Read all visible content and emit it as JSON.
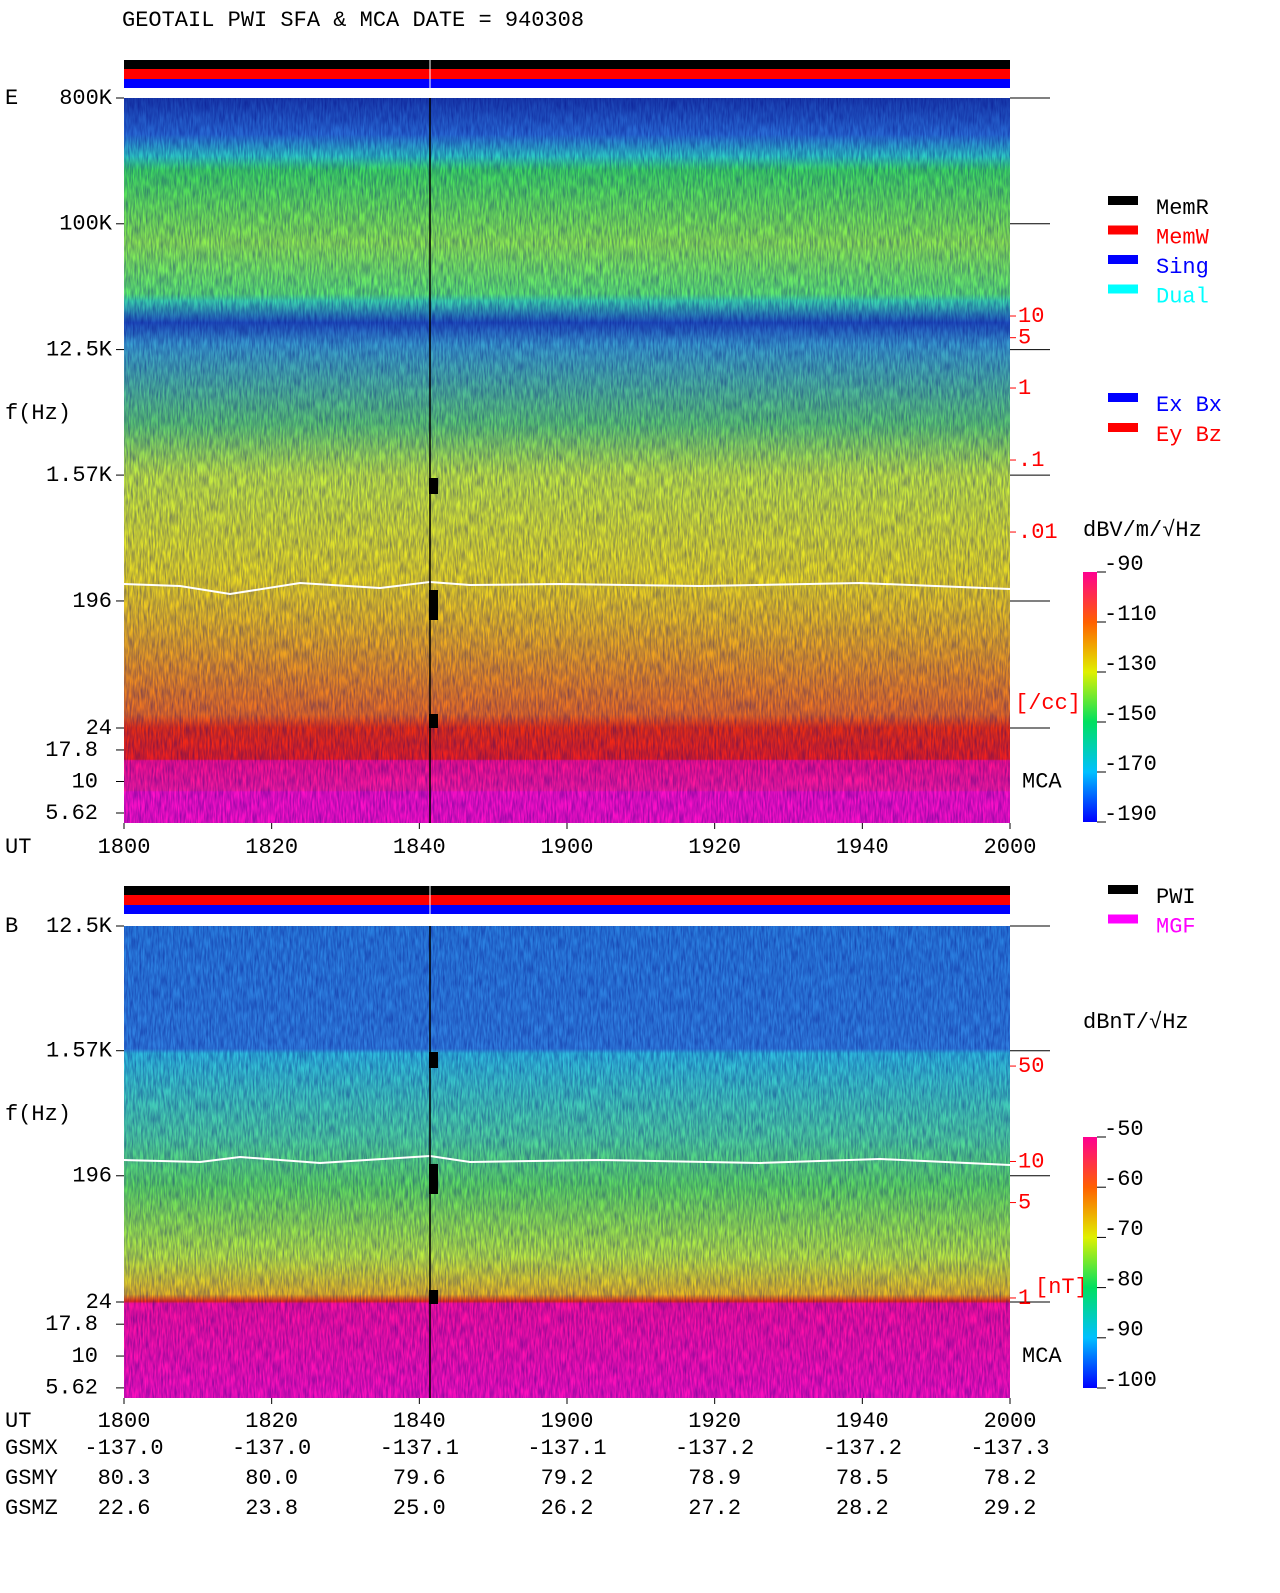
{
  "title": "GEOTAIL  PWI SFA & MCA   DATE = 940308",
  "chart_data": [
    {
      "type": "spectrogram",
      "panel": "E",
      "ylabel": "f(Hz)",
      "xlabel": "UT",
      "x_labels": [
        "1800",
        "1820",
        "1840",
        "1900",
        "1920",
        "1940",
        "2000"
      ],
      "ylim": [
        24,
        800000
      ],
      "yticks": [
        {
          "value": 800000,
          "label": "800K"
        },
        {
          "value": 100000,
          "label": "100K"
        },
        {
          "value": 12500,
          "label": "12.5K"
        },
        {
          "value": 1570,
          "label": "1.57K"
        },
        196,
        24
      ],
      "mca_label": "MCA",
      "mca_ylim": [
        4.68,
        26.6
      ],
      "mca_yticks": [
        17.8,
        10,
        5.62
      ],
      "y2lim": [
        9.1e-07,
        10660
      ],
      "y2ticks": [
        10,
        5,
        1,
        {
          "value": 0.1,
          "label": ".1"
        },
        {
          "value": 0.01,
          "label": ".01"
        }
      ],
      "y2_unit": "[/cc]",
      "colorbar": {
        "label": "dBV/m/√Hz",
        "lim": [
          -190,
          -90
        ],
        "ticks": [
          -90,
          -110,
          -130,
          -150,
          -170,
          -190
        ]
      },
      "legend": [
        {
          "name": "MemR",
          "color": "#000000"
        },
        {
          "name": "MemW",
          "color": "#ff0000"
        },
        {
          "name": "Sing",
          "color": "#0000ff"
        },
        {
          "name": "Dual",
          "color": "#00ffff"
        }
      ],
      "legend2": [
        {
          "name": "Ex Bx",
          "color": "#0000ff"
        },
        {
          "name": "Ey Bz",
          "color": "#ff0000"
        }
      ]
    },
    {
      "type": "spectrogram",
      "panel": "B",
      "ylabel": "f(Hz)",
      "xlabel": "UT",
      "x_labels": [
        "1800",
        "1820",
        "1840",
        "1900",
        "1920",
        "1940",
        "2000"
      ],
      "ylim": [
        24,
        12500
      ],
      "yticks": [
        {
          "value": 12500,
          "label": "12.5K"
        },
        {
          "value": 1570,
          "label": "1.57K"
        },
        196,
        24
      ],
      "mca_label": "MCA",
      "mca_ylim": [
        4.68,
        26.6
      ],
      "mca_yticks": [
        17.8,
        10,
        5.62
      ],
      "y2lim": [
        0.185,
        531
      ],
      "y2ticks": [
        50,
        10,
        5,
        1
      ],
      "y2_unit": "[nT]",
      "colorbar": {
        "label": "dBnT/√Hz",
        "lim": [
          -100,
          -50
        ],
        "ticks": [
          -50,
          -60,
          -70,
          -80,
          -90,
          -100
        ]
      },
      "legend": [
        {
          "name": "PWI",
          "color": "#000000"
        },
        {
          "name": "MGF",
          "color": "#ff00ff"
        }
      ]
    }
  ],
  "ephemeris": {
    "rows": [
      {
        "name": "GSMX",
        "values": [
          "-137.0",
          "-137.0",
          "-137.1",
          "-137.1",
          "-137.2",
          "-137.2",
          "-137.3"
        ]
      },
      {
        "name": "GSMY",
        "values": [
          "80.3",
          "80.0",
          "79.6",
          "79.2",
          "78.9",
          "78.5",
          "78.2"
        ]
      },
      {
        "name": "GSMZ",
        "values": [
          "22.6",
          "23.8",
          "25.0",
          "26.2",
          "27.2",
          "28.2",
          "29.2"
        ]
      }
    ]
  }
}
